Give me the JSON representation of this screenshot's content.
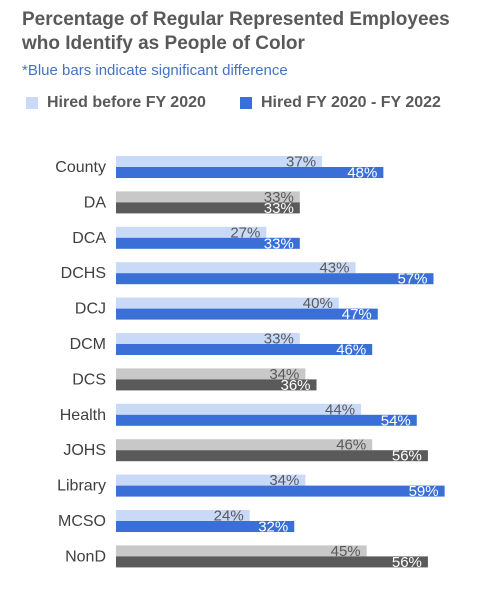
{
  "title": "Percentage of Regular Represented Employees who Identify as People of Color",
  "subtitle": "*Blue bars indicate significant difference",
  "legend": [
    {
      "label": "Hired before FY 2020",
      "color": "#c9d9f8"
    },
    {
      "label": "Hired FY 2020 - FY 2022",
      "color": "#3a6fd8"
    }
  ],
  "colors": {
    "before_significant": "#c9d9f8",
    "after_significant": "#3a6fd8",
    "before_not_significant": "#c8c8c8",
    "after_not_significant": "#5a5a5a"
  },
  "chart_data": {
    "type": "bar",
    "orientation": "horizontal",
    "categories": [
      "County",
      "DA",
      "DCA",
      "DCHS",
      "DCJ",
      "DCM",
      "DCS",
      "Health",
      "JOHS",
      "Library",
      "MCSO",
      "NonD"
    ],
    "series": [
      {
        "name": "Hired before FY 2020",
        "values": [
          37,
          33,
          27,
          43,
          40,
          33,
          34,
          44,
          46,
          34,
          24,
          45
        ]
      },
      {
        "name": "Hired FY 2020 - FY 2022",
        "values": [
          48,
          33,
          33,
          57,
          47,
          46,
          36,
          54,
          56,
          59,
          32,
          56
        ]
      }
    ],
    "significant": [
      true,
      false,
      true,
      true,
      true,
      true,
      false,
      true,
      false,
      true,
      true,
      false
    ],
    "value_suffix": "%",
    "xlim": [
      0,
      100
    ],
    "grid": false,
    "legend_position": "top-left"
  }
}
